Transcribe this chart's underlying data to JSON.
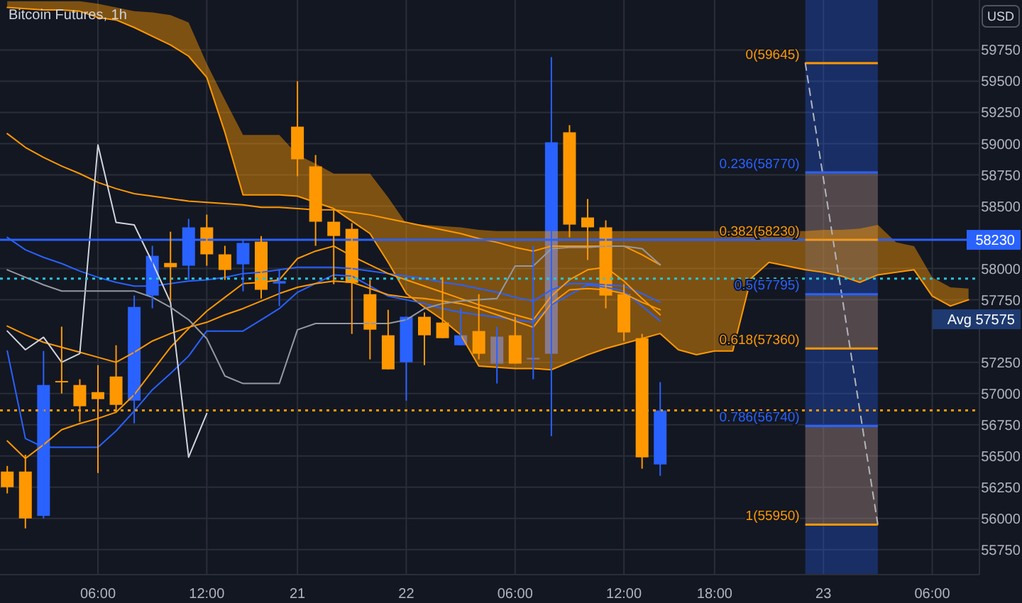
{
  "chart_data": {
    "type": "candlestick",
    "title": "Bitcoin Futures, 1h",
    "ylabel": "USD",
    "categories": [
      null,
      null,
      null,
      null,
      null,
      "06:00",
      null,
      null,
      null,
      null,
      null,
      "12:00",
      null,
      null,
      null,
      null,
      "21",
      null,
      null,
      null,
      null,
      null,
      "22",
      null,
      null,
      null,
      null,
      null,
      "06:00",
      null,
      null,
      null,
      null,
      null,
      "12:00",
      null,
      null,
      null,
      null,
      "18:00",
      null,
      null,
      null,
      null,
      null,
      "23",
      null,
      null,
      null,
      null,
      null,
      "06:00",
      null,
      null
    ],
    "ohlc": [
      [
        56375,
        56420,
        56200,
        56250
      ],
      [
        56375,
        56510,
        55920,
        56000
      ],
      [
        56020,
        57340,
        56000,
        57068
      ],
      [
        57100,
        57535,
        57000,
        57090
      ],
      [
        57068,
        57114,
        56773,
        56898
      ],
      [
        57011,
        57227,
        56364,
        56955
      ],
      [
        57136,
        57386,
        56852,
        56909
      ],
      [
        56943,
        57784,
        56761,
        57693
      ],
      [
        57784,
        58182,
        57682,
        58102
      ],
      [
        58045,
        58295,
        57739,
        58011
      ],
      [
        58023,
        58398,
        57909,
        58330
      ],
      [
        58330,
        58432,
        58023,
        58114
      ],
      [
        58114,
        58182,
        57909,
        57989
      ],
      [
        58034,
        58227,
        57818,
        58205
      ],
      [
        58216,
        58261,
        57761,
        57830
      ],
      [
        57880,
        57990,
        57700,
        57900
      ],
      [
        59136,
        59500,
        58739,
        58875
      ],
      [
        58818,
        58909,
        58182,
        58375
      ],
      [
        58375,
        58466,
        57875,
        58261
      ],
      [
        58318,
        58364,
        57477,
        57886
      ],
      [
        57795,
        57909,
        57273,
        57511
      ],
      [
        57466,
        57670,
        57193,
        57193
      ],
      [
        57250,
        57614,
        56943,
        57614
      ],
      [
        57614,
        57648,
        57227,
        57466
      ],
      [
        57568,
        57932,
        57443,
        57443
      ],
      [
        57386,
        57682,
        57386,
        57466
      ],
      [
        57500,
        57795,
        57273,
        57318
      ],
      [
        57239,
        57534,
        57080,
        57455
      ],
      [
        57466,
        57614,
        57239,
        57239
      ],
      [
        57273,
        58182,
        57114,
        57285
      ],
      [
        57318,
        59693,
        56659,
        59011
      ],
      [
        59091,
        59148,
        58250,
        58352
      ],
      [
        58409,
        58557,
        58068,
        58330
      ],
      [
        58330,
        58386,
        57682,
        57784
      ],
      [
        57795,
        57875,
        57420,
        57489
      ],
      [
        57443,
        57477,
        56398,
        56489
      ],
      [
        56432,
        57091,
        56341,
        56864
      ],
      null,
      null,
      null,
      null,
      null,
      null,
      null,
      null,
      null,
      null,
      null,
      null,
      null,
      null,
      null,
      null,
      null
    ],
    "colors": [
      "#ff9800",
      "#ff9800",
      "#2962ff",
      "#ff9800",
      "#ff9800",
      "#ff9800",
      "#ff9800",
      "#2962ff",
      "#2962ff",
      "#ff9800",
      "#2962ff",
      "#ff9800",
      "#ff9800",
      "#2962ff",
      "#ff9800",
      "#2962ff",
      "#ff9800",
      "#ff9800",
      "#ff9800",
      "#ff9800",
      "#ff9800",
      "#ff9800",
      "#2962ff",
      "#ff9800",
      "#ff9800",
      "#2962ff",
      "#ff9800",
      "#2962ff",
      "#ff9800",
      "#2962ff",
      "#2962ff",
      "#ff9800",
      "#ff9800",
      "#ff9800",
      "#ff9800",
      "#ff9800",
      "#2962ff",
      null,
      null,
      null,
      null,
      null,
      null,
      null,
      null,
      null,
      null,
      null,
      null,
      null,
      null,
      null,
      null,
      null
    ],
    "ylim": [
      55550,
      60150
    ],
    "yticks": [
      55750,
      56000,
      56250,
      56500,
      56750,
      57000,
      57250,
      57750,
      58000,
      58500,
      58750,
      59000,
      59250,
      59500,
      59750
    ],
    "grid": true,
    "series": [
      {
        "type": "line",
        "color": "#ff9800",
        "values": [
          60090,
          60080,
          60070,
          60070,
          60060,
          60010,
          59990,
          59930,
          59860,
          59790,
          59700,
          59530,
          59090,
          58590,
          58590,
          58590,
          58580,
          58530,
          58480,
          58380,
          58280,
          58050,
          57800,
          57690,
          57590,
          57470,
          57220,
          57210,
          57200,
          57200,
          57190,
          57250,
          57310,
          57360,
          57400,
          57440,
          57480,
          57350,
          57310,
          57340,
          57340,
          57920,
          58050,
          58020,
          57990,
          57970,
          57940,
          57890,
          57950,
          57970,
          57990,
          57780,
          57700,
          57750
        ],
        "lower": [
          60090,
          60080,
          60070,
          60070,
          60060,
          60010,
          59990,
          59930,
          59860,
          59790,
          59700,
          59530,
          59090,
          58590,
          58590,
          58590,
          58580,
          58530,
          58480,
          58380,
          58280,
          58050,
          57800,
          57690,
          57590,
          57470,
          57220,
          57210,
          57200,
          57200,
          57190,
          57250,
          57310,
          57360,
          57400,
          57440,
          57480,
          57350,
          57310,
          57340,
          57340,
          57920,
          58050,
          58020,
          57990,
          57970,
          57940,
          57890,
          57950,
          57970,
          57990,
          57780,
          57700,
          57750
        ],
        "upper": [
          60140,
          60140,
          60140,
          60140,
          60140,
          60120,
          60090,
          60060,
          60050,
          60030,
          59970,
          59640,
          59350,
          59070,
          59070,
          59070,
          58910,
          58840,
          58760,
          58760,
          58760,
          58570,
          58360,
          58350,
          58340,
          58330,
          58310,
          58300,
          58300,
          58300,
          58300,
          58300,
          58300,
          58300,
          58300,
          58300,
          58300,
          58300,
          58300,
          58300,
          58300,
          58300,
          58300,
          58300,
          58300,
          58310,
          58310,
          58320,
          58350,
          58210,
          58180,
          57930,
          57850,
          57840
        ]
      },
      {
        "type": "line",
        "color": "#ff9800",
        "values": [
          59080,
          58970,
          58890,
          58820,
          58760,
          58690,
          58640,
          58600,
          58580,
          58560,
          58540,
          58530,
          58520,
          58510,
          58490,
          58490,
          58480,
          58470,
          58470,
          58450,
          58430,
          58400,
          58370,
          58340,
          58310,
          58280,
          58240,
          58210,
          58170,
          58140,
          58180,
          58180,
          58180,
          58180,
          58180,
          58110,
          58030,
          null,
          null,
          null,
          null,
          null,
          null,
          null,
          null,
          null,
          null,
          null,
          null,
          null,
          null,
          null,
          null,
          null
        ]
      },
      {
        "type": "line",
        "color": "#2962ff",
        "values": [
          58250,
          58150,
          58090,
          58040,
          57980,
          57930,
          57890,
          57860,
          57860,
          57880,
          57900,
          57910,
          57930,
          57960,
          57970,
          57990,
          58010,
          58010,
          58010,
          58000,
          57980,
          57960,
          57940,
          57920,
          57890,
          57870,
          57840,
          57810,
          57770,
          57740,
          57830,
          57880,
          57880,
          57870,
          57860,
          57800,
          57730,
          null,
          null,
          null,
          null,
          null,
          null,
          null,
          null,
          null,
          null,
          null,
          null,
          null,
          null,
          null,
          null,
          null
        ]
      },
      {
        "type": "line",
        "color": "#2962ff",
        "values": [
          57340,
          56640,
          56570,
          56570,
          56570,
          56570,
          56700,
          56860,
          57030,
          57160,
          57300,
          57500,
          57500,
          57500,
          57590,
          57680,
          57810,
          57880,
          57950,
          57940,
          57860,
          57780,
          57750,
          57720,
          57680,
          57650,
          57630,
          57610,
          57590,
          57570,
          57710,
          57790,
          57870,
          57850,
          57820,
          57700,
          57580,
          null,
          null,
          null,
          null,
          null,
          null,
          null,
          null,
          null,
          null,
          null,
          null,
          null,
          null,
          null,
          null,
          null
        ]
      },
      {
        "type": "line",
        "color": "#ff9800",
        "values": [
          56620,
          56480,
          56590,
          56710,
          56760,
          56800,
          56850,
          56990,
          57180,
          57370,
          57520,
          57660,
          57770,
          57880,
          57890,
          57910,
          58080,
          58140,
          58180,
          58100,
          58030,
          57960,
          57910,
          57860,
          57810,
          57760,
          57710,
          57670,
          57630,
          57590,
          57780,
          57910,
          57990,
          58010,
          57900,
          57760,
          57630,
          null,
          null,
          null,
          null,
          null,
          null,
          null,
          null,
          null,
          null,
          null,
          null,
          null,
          null,
          null,
          null,
          null
        ]
      },
      {
        "type": "line",
        "color": "#ff9800",
        "values": [
          57540,
          57470,
          57410,
          57370,
          57330,
          57290,
          57250,
          57330,
          57420,
          57480,
          57530,
          57570,
          57630,
          57680,
          57740,
          57800,
          57850,
          57880,
          57900,
          57890,
          57840,
          57790,
          57770,
          57760,
          57740,
          57720,
          57680,
          57630,
          57580,
          57530,
          57720,
          57830,
          57840,
          57830,
          57800,
          57730,
          57670,
          null,
          null,
          null,
          null,
          null,
          null,
          null,
          null,
          null,
          null,
          null,
          null,
          null,
          null,
          null,
          null,
          null
        ]
      },
      {
        "type": "line",
        "color": "#d1d4dc",
        "values": [
          57500,
          57350,
          57450,
          57250,
          57320,
          58990,
          58370,
          58350,
          58050,
          57730,
          56490,
          56840,
          null,
          null,
          null,
          null,
          null,
          null,
          null,
          null,
          null,
          null,
          null,
          null,
          null,
          null,
          null,
          null,
          null,
          null,
          null,
          null,
          null,
          null,
          null,
          null,
          null,
          null,
          null,
          null,
          null,
          null,
          null,
          null,
          null,
          null,
          null,
          null,
          null,
          null,
          null,
          null,
          null,
          null
        ]
      },
      {
        "type": "line",
        "color": "#9598a1",
        "values": [
          57990,
          57930,
          57870,
          57820,
          57820,
          57820,
          57820,
          57820,
          57770,
          57690,
          57590,
          57440,
          57140,
          57080,
          57080,
          57080,
          57510,
          57560,
          57560,
          57560,
          57560,
          57560,
          57590,
          57680,
          57720,
          57740,
          57750,
          57760,
          58020,
          58020,
          58160,
          58170,
          58170,
          58180,
          58180,
          58160,
          58030,
          null,
          null,
          null,
          null,
          null,
          null,
          null,
          null,
          null,
          null,
          null,
          null,
          null,
          null,
          null,
          null,
          null
        ]
      },
      {
        "type": "line",
        "color": "#b2b5be",
        "line_style": "dashed",
        "values": [
          null,
          null,
          null,
          null,
          null,
          null,
          null,
          null,
          null,
          null,
          null,
          null,
          null,
          null,
          null,
          null,
          null,
          null,
          null,
          null,
          null,
          null,
          null,
          null,
          null,
          null,
          null,
          null,
          null,
          null,
          null,
          null,
          null,
          null,
          null,
          null,
          null,
          null,
          null,
          null,
          null,
          null,
          null,
          null,
          59645,
          58720,
          57800,
          56870,
          55950,
          null,
          null,
          null,
          null,
          null
        ]
      }
    ],
    "ref_lines": [
      {
        "axis": "y",
        "value": 58230,
        "color": "#2962ff",
        "line_style": "solid"
      },
      {
        "axis": "y",
        "value": 57920,
        "color": "#26c6da",
        "line_style": "dotted"
      },
      {
        "axis": "y",
        "value": 56864,
        "color": "#ff9800",
        "line_style": "dotted"
      },
      {
        "axis": "y",
        "value": 59645,
        "label": "0(59645)",
        "color": "#ff9800"
      },
      {
        "axis": "y",
        "value": 58770,
        "label": "0.236(58770)",
        "color": "#2962ff"
      },
      {
        "axis": "y",
        "value": 58230,
        "label": "0.382(58230)",
        "color": "#ff9800"
      },
      {
        "axis": "y",
        "value": 57795,
        "label": "0.5(57795)",
        "color": "#2962ff"
      },
      {
        "axis": "y",
        "value": 57360,
        "label": "0.618(57360)",
        "color": "#ff9800"
      },
      {
        "axis": "y",
        "value": 56740,
        "label": "0.786(56740)",
        "color": "#2962ff"
      },
      {
        "axis": "y",
        "value": 55950,
        "label": "1(55950)",
        "color": "#ff9800"
      }
    ],
    "bands": [
      {
        "axis": "y",
        "from": 58230,
        "to": 58770,
        "color": "#ff9800"
      },
      {
        "axis": "y",
        "from": 57360,
        "to": 57795,
        "color": "#ff9800"
      },
      {
        "axis": "y",
        "from": 55950,
        "to": 56740,
        "color": "#ff9800"
      }
    ],
    "annotations": [
      {
        "text": "58230",
        "y": 58230
      },
      "Avg 57575"
    ]
  }
}
